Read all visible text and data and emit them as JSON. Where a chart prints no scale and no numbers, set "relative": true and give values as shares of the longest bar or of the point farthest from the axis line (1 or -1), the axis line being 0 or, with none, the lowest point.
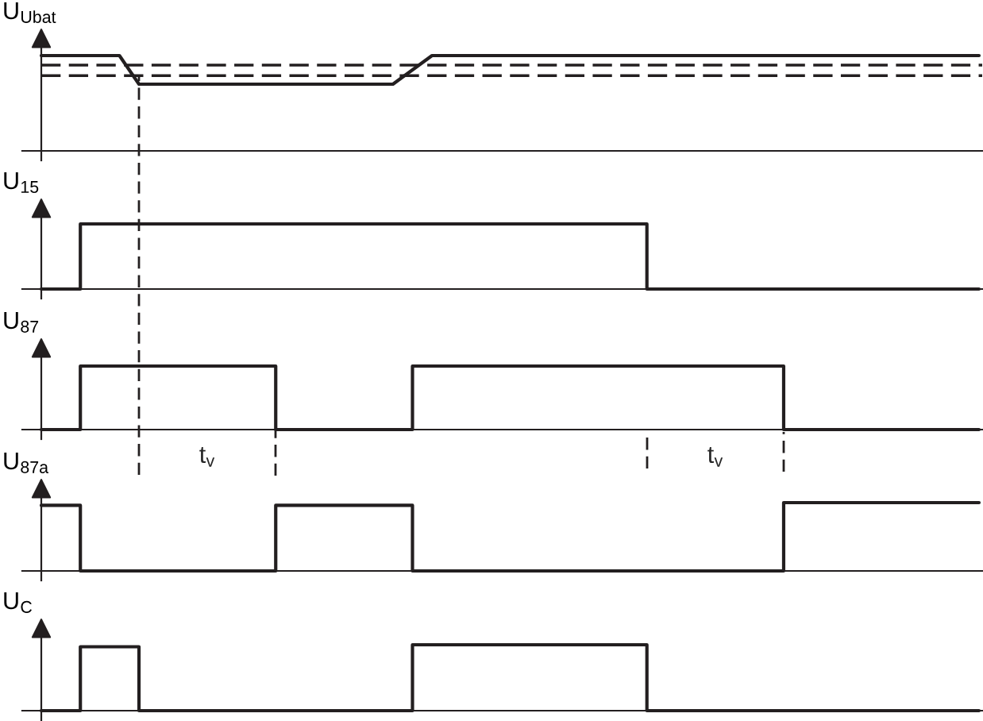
{
  "chart_data": [
    {
      "type": "line",
      "relative": true,
      "ylabel": "U$_{Ubat}$",
      "categories": [
        null,
        null,
        null,
        null,
        null,
        null,
        null,
        null,
        null,
        null,
        null,
        null,
        null,
        null,
        null,
        null,
        null,
        null,
        null,
        null,
        null,
        null,
        null,
        null,
        null,
        null,
        null,
        null,
        null,
        null,
        null,
        null,
        null,
        null,
        null,
        null,
        null,
        null,
        null,
        null,
        null,
        null,
        null,
        null,
        null,
        null,
        null,
        null,
        null
      ],
      "series": [
        {
          "color": "#231f20",
          "values": [
            1,
            1,
            1,
            1,
            1,
            0.7,
            0.7,
            0.7,
            0.7,
            0.7,
            0.7,
            0.7,
            0.7,
            0.7,
            0.7,
            0.7,
            0.7,
            0.7,
            0.7,
            0.85,
            1,
            1,
            1,
            1,
            1,
            1,
            1,
            1,
            1,
            1,
            1,
            1,
            1,
            1,
            1,
            1,
            1,
            1,
            1,
            1,
            1,
            1,
            1,
            1,
            1,
            1,
            1,
            1,
            1
          ]
        }
      ],
      "ref_lines": [
        {
          "axis": "y",
          "value": 0.9,
          "line_style": "dashed",
          "color": "#231f20"
        },
        {
          "axis": "y",
          "value": 0.79,
          "line_style": "dashed",
          "color": "#231f20"
        }
      ]
    },
    {
      "type": "step",
      "relative": true,
      "ylabel": "U$_{15}$",
      "categories": [
        null,
        null,
        null,
        null,
        null,
        null,
        null,
        null,
        null,
        null,
        null,
        null,
        null,
        null,
        null,
        null,
        null,
        null,
        null,
        null,
        null,
        null,
        null,
        null,
        null,
        null,
        null,
        null,
        null,
        null,
        null,
        null,
        null,
        null,
        null,
        null,
        null,
        null,
        null,
        null,
        null,
        null,
        null,
        null,
        null,
        null,
        null,
        null,
        null
      ],
      "series": [
        {
          "color": "#231f20",
          "values": [
            0,
            0,
            1,
            1,
            1,
            1,
            1,
            1,
            1,
            1,
            1,
            1,
            1,
            1,
            1,
            1,
            1,
            1,
            1,
            1,
            1,
            1,
            1,
            1,
            1,
            1,
            1,
            1,
            1,
            1,
            1,
            0,
            0,
            0,
            0,
            0,
            0,
            0,
            0,
            0,
            0,
            0,
            0,
            0,
            0,
            0,
            0,
            0,
            0
          ]
        }
      ]
    },
    {
      "type": "step",
      "relative": true,
      "ylabel": "U$_{87}$",
      "categories": [
        null,
        null,
        null,
        null,
        null,
        null,
        null,
        null,
        null,
        null,
        null,
        null,
        null,
        null,
        null,
        null,
        null,
        null,
        null,
        null,
        null,
        null,
        null,
        null,
        null,
        null,
        null,
        null,
        null,
        null,
        null,
        null,
        null,
        null,
        null,
        null,
        null,
        null,
        null,
        null,
        null,
        null,
        null,
        null,
        null,
        null,
        null,
        null,
        null
      ],
      "series": [
        {
          "color": "#231f20",
          "values": [
            0,
            0,
            1,
            1,
            1,
            1,
            1,
            1,
            1,
            1,
            1,
            1,
            0,
            0,
            0,
            0,
            0,
            0,
            0,
            1,
            1,
            1,
            1,
            1,
            1,
            1,
            1,
            1,
            1,
            1,
            1,
            1,
            1,
            1,
            1,
            1,
            1,
            1,
            0,
            0,
            0,
            0,
            0,
            0,
            0,
            0,
            0,
            0,
            0
          ]
        }
      ],
      "annotations": [
        "t$_{v}$",
        "t$_{v}$"
      ]
    },
    {
      "type": "step",
      "relative": true,
      "ylabel": "U$_{87a}$",
      "categories": [
        null,
        null,
        null,
        null,
        null,
        null,
        null,
        null,
        null,
        null,
        null,
        null,
        null,
        null,
        null,
        null,
        null,
        null,
        null,
        null,
        null,
        null,
        null,
        null,
        null,
        null,
        null,
        null,
        null,
        null,
        null,
        null,
        null,
        null,
        null,
        null,
        null,
        null,
        null,
        null,
        null,
        null,
        null,
        null,
        null,
        null,
        null,
        null,
        null
      ],
      "series": [
        {
          "color": "#231f20",
          "values": [
            0.96,
            0.96,
            0,
            0,
            0,
            0,
            0,
            0,
            0,
            0,
            0,
            0,
            0.96,
            0.96,
            0.96,
            0.96,
            0.96,
            0.96,
            0.96,
            0,
            0,
            0,
            0,
            0,
            0,
            0,
            0,
            0,
            0,
            0,
            0,
            0,
            0,
            0,
            0,
            0,
            0,
            0,
            1,
            1,
            1,
            1,
            1,
            1,
            1,
            1,
            1,
            1,
            1
          ]
        }
      ]
    },
    {
      "type": "step",
      "relative": true,
      "ylabel": "U$_{C}$",
      "categories": [
        null,
        null,
        null,
        null,
        null,
        null,
        null,
        null,
        null,
        null,
        null,
        null,
        null,
        null,
        null,
        null,
        null,
        null,
        null,
        null,
        null,
        null,
        null,
        null,
        null,
        null,
        null,
        null,
        null,
        null,
        null,
        null,
        null,
        null,
        null,
        null,
        null,
        null,
        null,
        null,
        null,
        null,
        null,
        null,
        null,
        null,
        null,
        null,
        null
      ],
      "series": [
        {
          "color": "#231f20",
          "values": [
            0,
            0,
            0.97,
            0.97,
            0.97,
            0,
            0,
            0,
            0,
            0,
            0,
            0,
            0,
            0,
            0,
            0,
            0,
            0,
            0,
            1,
            1,
            1,
            1,
            1,
            1,
            1,
            1,
            1,
            1,
            1,
            1,
            0,
            0,
            0,
            0,
            0,
            0,
            0,
            0,
            0,
            0,
            0,
            0,
            0,
            0,
            0,
            0,
            0,
            0
          ]
        }
      ]
    }
  ]
}
